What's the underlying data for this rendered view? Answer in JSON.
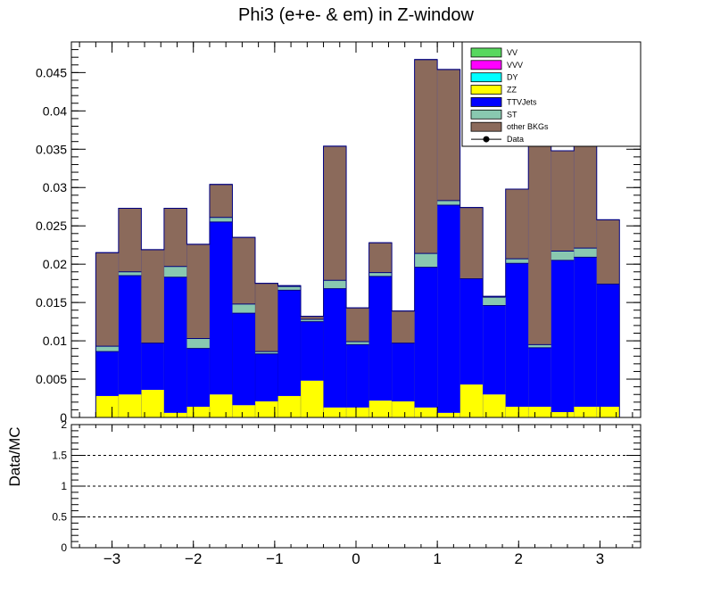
{
  "chart_data": [
    {
      "type": "bar",
      "stacked": true,
      "title": "Phi3 (e+e- & em) in Z-window",
      "xlim": [
        -3.5,
        3.5
      ],
      "ylim": [
        0,
        0.049
      ],
      "bin_edges": [
        -3.2,
        -2.92,
        -2.64,
        -2.36,
        -2.08,
        -1.8,
        -1.52,
        -1.24,
        -0.96,
        -0.68,
        -0.4,
        -0.12,
        0.16,
        0.44,
        0.72,
        1.0,
        1.28,
        1.56,
        1.84,
        2.12,
        2.4,
        2.68,
        2.96,
        3.24
      ],
      "y_ticks": [
        "0",
        "0.005",
        "0.01",
        "0.015",
        "0.02",
        "0.025",
        "0.03",
        "0.035",
        "0.04",
        "0.045"
      ],
      "y_tick_values": [
        0,
        0.005,
        0.01,
        0.015,
        0.02,
        0.025,
        0.03,
        0.035,
        0.04,
        0.045
      ],
      "series": [
        {
          "name": "VV",
          "color": "#57d85e",
          "values": [
            0,
            0,
            0,
            0,
            0,
            0,
            0,
            0,
            0,
            0,
            0,
            0,
            0,
            0,
            0,
            0,
            0,
            0,
            0,
            0,
            0,
            0,
            0
          ]
        },
        {
          "name": "VVV",
          "color": "#ff00ff",
          "values": [
            0,
            0,
            0,
            0,
            0,
            0,
            0,
            0,
            0,
            0,
            0,
            0,
            0,
            0,
            0,
            0,
            0,
            0,
            0,
            0,
            0,
            0,
            0
          ]
        },
        {
          "name": "DY",
          "color": "#00ffff",
          "values": [
            0,
            0,
            0,
            0,
            0,
            0,
            0,
            0,
            0,
            0,
            0,
            0,
            0,
            0,
            0,
            0,
            0,
            0,
            0,
            0,
            0,
            0,
            0
          ]
        },
        {
          "name": "ZZ",
          "color": "#ffff00",
          "values": [
            0.0028,
            0.003,
            0.0036,
            0.0006,
            0.0014,
            0.003,
            0.0016,
            0.0021,
            0.0028,
            0.0048,
            0.0013,
            0.0013,
            0.0022,
            0.0021,
            0.0013,
            0.0006,
            0.0043,
            0.003,
            0.0014,
            0.0014,
            0.0007,
            0.0014,
            0.0014
          ]
        },
        {
          "name": "TTVJets",
          "color": "#0000ff",
          "values": [
            0.0058,
            0.0155,
            0.0061,
            0.0177,
            0.0076,
            0.0225,
            0.012,
            0.0062,
            0.0138,
            0.0077,
            0.0155,
            0.0082,
            0.0162,
            0.0076,
            0.0183,
            0.0271,
            0.0138,
            0.0116,
            0.0187,
            0.0077,
            0.0198,
            0.0195,
            0.016
          ]
        },
        {
          "name": "ST",
          "color": "#89c8b0",
          "values": [
            0.0007,
            0.0005,
            0,
            0.0014,
            0.0013,
            0.0006,
            0.0012,
            0.0003,
            0.0005,
            0.0003,
            0.0011,
            0.0004,
            0.0005,
            0,
            0.0018,
            0.0006,
            0,
            0.0011,
            0.0006,
            0.0004,
            0.0012,
            0.0012,
            0
          ]
        },
        {
          "name": "other BKGs",
          "color": "#8b6a5b",
          "values": [
            0.0122,
            0.0083,
            0.0122,
            0.0076,
            0.0123,
            0.0043,
            0.0087,
            0.0089,
            0.0001,
            0.0004,
            0.0175,
            0.0044,
            0.0039,
            0.0042,
            0.0253,
            0.0171,
            0.0093,
            0.0001,
            0.0091,
            0.0262,
            0.0131,
            0.0141,
            0.0084
          ]
        }
      ],
      "legend": {
        "position": "top-right",
        "entries": [
          {
            "label": "VV",
            "color": "#57d85e",
            "kind": "box"
          },
          {
            "label": "VVV",
            "color": "#ff00ff",
            "kind": "box"
          },
          {
            "label": "DY",
            "color": "#00ffff",
            "kind": "box"
          },
          {
            "label": "ZZ",
            "color": "#ffff00",
            "kind": "box"
          },
          {
            "label": "TTVJets",
            "color": "#0000ff",
            "kind": "box"
          },
          {
            "label": "ST",
            "color": "#89c8b0",
            "kind": "box"
          },
          {
            "label": "other BKGs",
            "color": "#8b6a5b",
            "kind": "box"
          },
          {
            "label": "Data",
            "color": "#000000",
            "kind": "marker"
          }
        ]
      },
      "outline_color": "#000080"
    },
    {
      "type": "line",
      "ylabel": "Data/MC",
      "xlim": [
        -3.5,
        3.5
      ],
      "ylim": [
        0,
        2
      ],
      "y_ticks": [
        "0",
        "0.5",
        "1",
        "1.5",
        "2"
      ],
      "y_tick_values": [
        0,
        0.5,
        1,
        1.5,
        2
      ],
      "x_ticks": [
        "−3",
        "−2",
        "−1",
        "0",
        "1",
        "2",
        "3"
      ],
      "x_tick_values": [
        -3,
        -2,
        -1,
        0,
        1,
        2,
        3
      ],
      "reference_lines": [
        0.5,
        1,
        1.5
      ],
      "grid": false,
      "values": []
    }
  ]
}
